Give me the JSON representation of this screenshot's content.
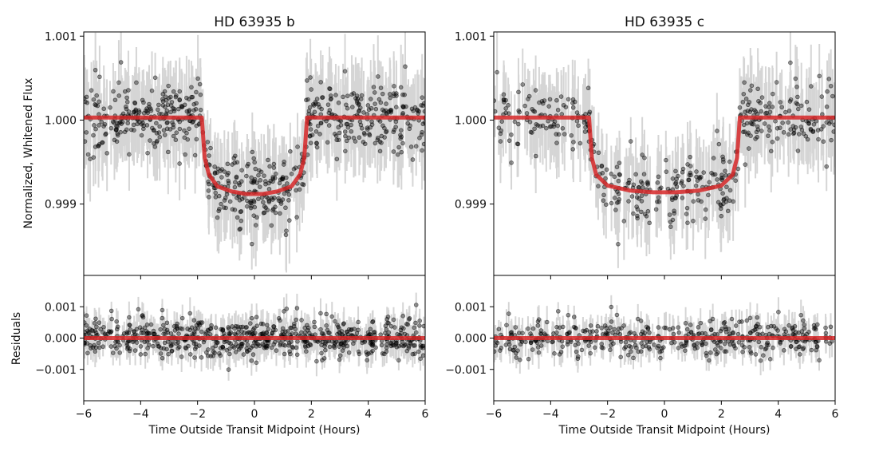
{
  "figure": {
    "ylabel_top": "Normalized, Whitened Flux",
    "ylabel_bottom": "Residuals",
    "xlabel": "Time Outside Transit Midpoint (Hours)"
  },
  "colors": {
    "model": "#d62728",
    "points": "#000000",
    "errorbars": "#c8c8c8",
    "axes": "#000000",
    "background": "#ffffff"
  },
  "chart_data": [
    {
      "type": "scatter",
      "panel": "flux",
      "title": "HD 63935 b",
      "xlabel": "",
      "ylabel": "Normalized, Whitened Flux",
      "xlim": [
        -6,
        6
      ],
      "ylim": [
        0.99815,
        1.00105
      ],
      "xticks": [
        -6,
        -4,
        -2,
        0,
        2,
        4,
        6
      ],
      "yticks": [
        0.999,
        1.0,
        1.001
      ],
      "ytick_labels": [
        "0.999",
        "1.000",
        "1.001"
      ],
      "grid": false,
      "model": {
        "name": "",
        "x": [
          -6,
          -1.85,
          -1.75,
          -1.6,
          -1.3,
          -0.8,
          -0.3,
          0,
          0.3,
          0.8,
          1.3,
          1.6,
          1.75,
          1.85,
          6
        ],
        "y": [
          1.00003,
          1.00003,
          0.99955,
          0.99935,
          0.99921,
          0.99915,
          0.99912,
          0.99912,
          0.99912,
          0.99915,
          0.99921,
          0.99935,
          0.99955,
          1.00003,
          1.00003
        ]
      },
      "points": {
        "x_range": [
          -6,
          6
        ],
        "count": 700,
        "in_transit_scatter": 0.0002,
        "out_of_transit_scatter": 0.0002,
        "errorbar": 0.0004
      }
    },
    {
      "type": "scatter",
      "panel": "flux",
      "title": "HD 63935 c",
      "xlabel": "",
      "ylabel": "",
      "xlim": [
        -6,
        6
      ],
      "ylim": [
        0.99815,
        1.00105
      ],
      "xticks": [
        -6,
        -4,
        -2,
        0,
        2,
        4,
        6
      ],
      "yticks": [
        0.999,
        1.0,
        1.001
      ],
      "ytick_labels": [
        "0.999",
        "1.000",
        "1.001"
      ],
      "grid": false,
      "model": {
        "name": "",
        "x": [
          -6,
          -2.65,
          -2.55,
          -2.4,
          -2.0,
          -1.2,
          -0.4,
          0,
          0.4,
          1.2,
          2.0,
          2.4,
          2.55,
          2.65,
          6
        ],
        "y": [
          1.00003,
          1.00003,
          0.99955,
          0.99935,
          0.99922,
          0.99916,
          0.99914,
          0.99914,
          0.99914,
          0.99916,
          0.99922,
          0.99935,
          0.99955,
          1.00003,
          1.00003
        ]
      },
      "points": {
        "x_range": [
          -6,
          6
        ],
        "count": 450,
        "in_transit_scatter": 0.0002,
        "out_of_transit_scatter": 0.0002,
        "errorbar": 0.0004
      }
    },
    {
      "type": "scatter",
      "panel": "residuals",
      "title": "",
      "xlabel": "Time Outside Transit Midpoint (Hours)",
      "ylabel": "Residuals",
      "xlim": [
        -6,
        6
      ],
      "ylim": [
        -0.002,
        0.002
      ],
      "xticks": [
        -6,
        -4,
        -2,
        0,
        2,
        4,
        6
      ],
      "xtick_labels": [
        "−6",
        "−4",
        "−2",
        "0",
        "2",
        "4",
        "6"
      ],
      "yticks": [
        -0.001,
        0.0,
        0.001
      ],
      "ytick_labels": [
        "−0.001",
        "0.000",
        "0.001"
      ],
      "grid": false,
      "model": {
        "name": "",
        "x": [
          -6,
          6
        ],
        "y": [
          0,
          0
        ]
      },
      "points": {
        "x_range": [
          -6,
          6
        ],
        "count": 700,
        "scatter": 0.0003,
        "errorbar": 0.0004
      }
    },
    {
      "type": "scatter",
      "panel": "residuals",
      "title": "",
      "xlabel": "Time Outside Transit Midpoint (Hours)",
      "ylabel": "",
      "xlim": [
        -6,
        6
      ],
      "ylim": [
        -0.002,
        0.002
      ],
      "xticks": [
        -6,
        -4,
        -2,
        0,
        2,
        4,
        6
      ],
      "xtick_labels": [
        "−6",
        "−4",
        "−2",
        "0",
        "2",
        "4",
        "6"
      ],
      "yticks": [
        -0.001,
        0.0,
        0.001
      ],
      "ytick_labels": [
        "−0.001",
        "0.000",
        "0.001"
      ],
      "grid": false,
      "model": {
        "name": "",
        "x": [
          -6,
          6
        ],
        "y": [
          0,
          0
        ]
      },
      "points": {
        "x_range": [
          -6,
          6
        ],
        "count": 450,
        "scatter": 0.0003,
        "errorbar": 0.0004
      }
    }
  ]
}
